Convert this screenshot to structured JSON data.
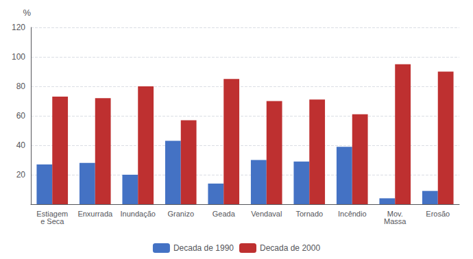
{
  "chart_data": {
    "type": "bar",
    "ylabel": "%",
    "categories": [
      "Estiagem\ne Seca",
      "Enxurrada",
      "Inundação",
      "Granizo",
      "Geada",
      "Vendaval",
      "Tornado",
      "Incêndio",
      "Mov.\nMassa",
      "Erosão"
    ],
    "series": [
      {
        "name": "Decada de 1990",
        "color": "#4472C4",
        "values": [
          27,
          28,
          20,
          43,
          14,
          30,
          29,
          39,
          4,
          9
        ]
      },
      {
        "name": "Decada de 2000",
        "color": "#BE3030",
        "values": [
          73,
          72,
          80,
          57,
          85,
          70,
          71,
          61,
          95,
          90
        ]
      }
    ],
    "ylim": [
      0,
      120
    ],
    "yticks": [
      {
        "value": 0,
        "label": ""
      },
      20,
      40,
      60,
      80,
      100,
      120
    ],
    "grid": true,
    "legend": "bottom"
  }
}
